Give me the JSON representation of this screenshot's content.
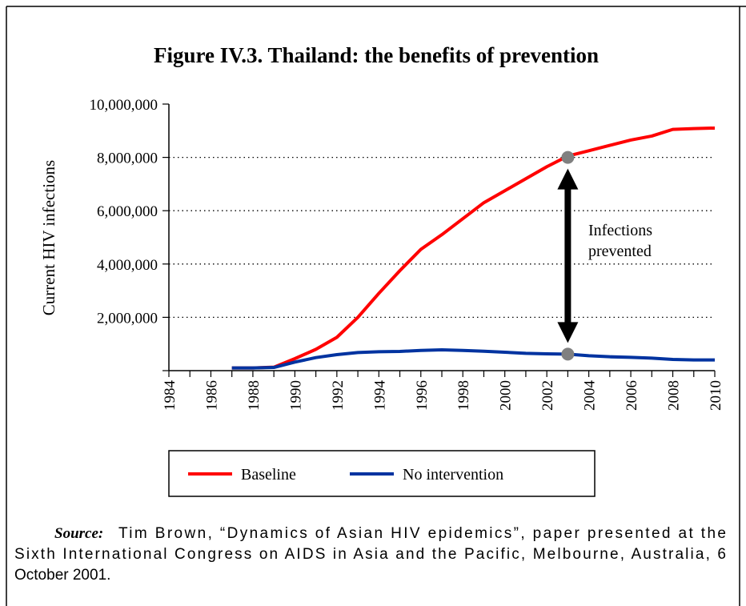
{
  "chart_data": {
    "type": "line",
    "title": "Figure IV.3.  Thailand: the benefits of prevention",
    "y_label": "Current HIV infections",
    "x": [
      1987,
      1988,
      1989,
      1990,
      1991,
      1992,
      1993,
      1994,
      1995,
      1996,
      1997,
      1998,
      1999,
      2000,
      2001,
      2002,
      2003,
      2004,
      2005,
      2006,
      2007,
      2008,
      2009,
      2010
    ],
    "series": [
      {
        "name": "Baseline",
        "color": "#ff0000",
        "values": [
          100000,
          100000,
          130000,
          450000,
          800000,
          1250000,
          2000000,
          2900000,
          3750000,
          4550000,
          5100000,
          5700000,
          6300000,
          6750000,
          7200000,
          7650000,
          8050000,
          8250000,
          8450000,
          8650000,
          8800000,
          9050000,
          9080000,
          9100000
        ]
      },
      {
        "name": "No intervention",
        "color": "#0033a0",
        "values": [
          100000,
          100000,
          120000,
          320000,
          490000,
          600000,
          680000,
          710000,
          720000,
          760000,
          780000,
          760000,
          730000,
          690000,
          650000,
          630000,
          620000,
          560000,
          520000,
          500000,
          470000,
          420000,
          400000,
          400000
        ]
      }
    ],
    "xlim": [
      1984,
      2010
    ],
    "xticks": [
      1984,
      1986,
      1988,
      1990,
      1992,
      1994,
      1996,
      1998,
      2000,
      2002,
      2004,
      2006,
      2008,
      2010
    ],
    "ylim": [
      0,
      10000000
    ],
    "yticks": [
      {
        "value": 0,
        "label": ""
      },
      {
        "value": 2000000,
        "label": "2,000,000"
      },
      {
        "value": 4000000,
        "label": "4,000,000"
      },
      {
        "value": 6000000,
        "label": "6,000,000"
      },
      {
        "value": 8000000,
        "label": "8,000,000"
      },
      {
        "value": 10000000,
        "label": "10,000,000"
      }
    ],
    "grid": true,
    "annotation": {
      "lines": [
        "Infections",
        "prevented"
      ],
      "x": 2003,
      "y_top": 8000000,
      "y_bottom": 620000,
      "color": "#808080"
    },
    "source": {
      "label": "Source:",
      "lines": [
        "Tim Brown, “Dynamics of Asian HIV epidemics”, paper presented at the",
        "Sixth International Congress on AIDS in Asia and the Pacific, Melbourne, Australia, 6",
        "October 2001."
      ]
    }
  }
}
